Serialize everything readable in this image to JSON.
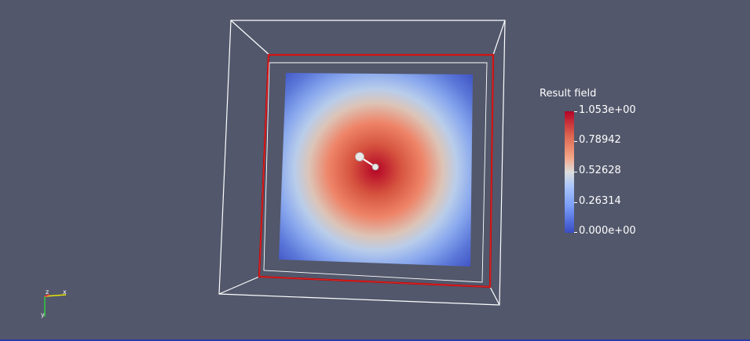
{
  "colorbar": {
    "title": "Result field",
    "ticks": [
      {
        "label": "1.053e+00",
        "value": 1.053
      },
      {
        "label": "0.78942",
        "value": 0.78942
      },
      {
        "label": "0.52628",
        "value": 0.52628
      },
      {
        "label": "0.26314",
        "value": 0.26314
      },
      {
        "label": "0.000e+00",
        "value": 0.0
      }
    ],
    "range": [
      0.0,
      1.053
    ],
    "colormap": [
      "#3b4cc0",
      "#dcdddd",
      "#b40426"
    ]
  },
  "scene": {
    "background_color": "#52576b",
    "outline_color": "#ffffff",
    "selection_color": "#cc0000"
  }
}
